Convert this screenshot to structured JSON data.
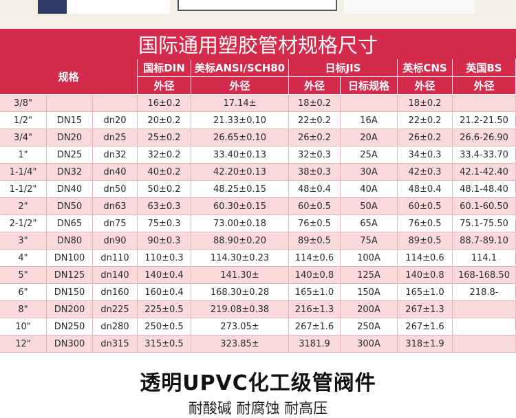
{
  "title": "国际通用塑胶管材规格尺寸",
  "header": {
    "spec": "规格",
    "groups": [
      {
        "label": "国标DIN",
        "sub": [
          "外径"
        ]
      },
      {
        "label": "美标ANSI/SCH80",
        "sub": [
          "外径"
        ]
      },
      {
        "label": "日标JIS",
        "sub": [
          "外径",
          "日标规格"
        ]
      },
      {
        "label": "英标CNS",
        "sub": [
          "外径"
        ]
      },
      {
        "label": "英国BS",
        "sub": [
          "外径"
        ]
      }
    ]
  },
  "rows": [
    [
      "3/8\"",
      null,
      null,
      "16±0.2",
      "17.14±",
      "18±0.2",
      null,
      "18±0.2",
      null
    ],
    [
      "1/2\"",
      "DN15",
      "dn20",
      "20±0.2",
      "21.33±0.10",
      "22±0.2",
      "16A",
      "22±0.2",
      "21.2-21.50"
    ],
    [
      "3/4\"",
      "DN20",
      "dn25",
      "25±0.2",
      "26.65±0.10",
      "26±0.2",
      "20A",
      "26±0.2",
      "26.6-26.90"
    ],
    [
      "1\"",
      "DN25",
      "dn32",
      "32±0.2",
      "33.40±0.13",
      "32±0.3",
      "25A",
      "34±0.3",
      "33.4-33.70"
    ],
    [
      "1-1/4\"",
      "DN32",
      "dn40",
      "40±0.2",
      "42.20±0.13",
      "38±0.3",
      "30A",
      "42±0.3",
      "42.1-42.40"
    ],
    [
      "1-1/2\"",
      "DN40",
      "dn50",
      "50±0.2",
      "48.25±0.15",
      "48±0.4",
      "40A",
      "48±0.4",
      "48.1-48.40"
    ],
    [
      "2\"",
      "DN50",
      "dn63",
      "63±0.3",
      "60.30±0.15",
      "60±0.5",
      "50A",
      "60±0.5",
      "60.1-60.50"
    ],
    [
      "2-1/2\"",
      "DN65",
      "dn75",
      "75±0.3",
      "73.00±0.18",
      "76±0.5",
      "65A",
      "76±0.5",
      "75.1-75.50"
    ],
    [
      "3\"",
      "DN80",
      "dn90",
      "90±0.3",
      "88.90±0.20",
      "89±0.5",
      "75A",
      "89±0.5",
      "88.7-89.10"
    ],
    [
      "4\"",
      "DN100",
      "dn110",
      "110±0.3",
      "114.30±0.23",
      "114±0.6",
      "100A",
      "114±0.6",
      "114.1"
    ],
    [
      "5\"",
      "DN125",
      "dn140",
      "140±0.4",
      "141.30±",
      "140±0.8",
      "125A",
      "140±0.8",
      "168-168.50"
    ],
    [
      "6\"",
      "DN150",
      "dn160",
      "160±0.4",
      "168.30±0.28",
      "165±1.0",
      "150A",
      "165±1.0",
      "218.8-"
    ],
    [
      "8\"",
      "DN200",
      "dn225",
      "225±0.5",
      "219.08±0.38",
      "216±1.3",
      "200A",
      "267±1.3",
      null
    ],
    [
      "10\"",
      "DN250",
      "dn280",
      "250±0.5",
      "273.05±",
      "267±1.6",
      "250A",
      "267±1.6",
      null
    ],
    [
      "12\"",
      "DN300",
      "dn315",
      "315±0.5",
      "323.85±",
      "3181.9",
      "300A",
      "318±1.9",
      null
    ]
  ],
  "footer": {
    "title": "透明UPVC化工级管阀件",
    "subtitle": "耐酸碱 耐腐蚀 耐高压"
  }
}
